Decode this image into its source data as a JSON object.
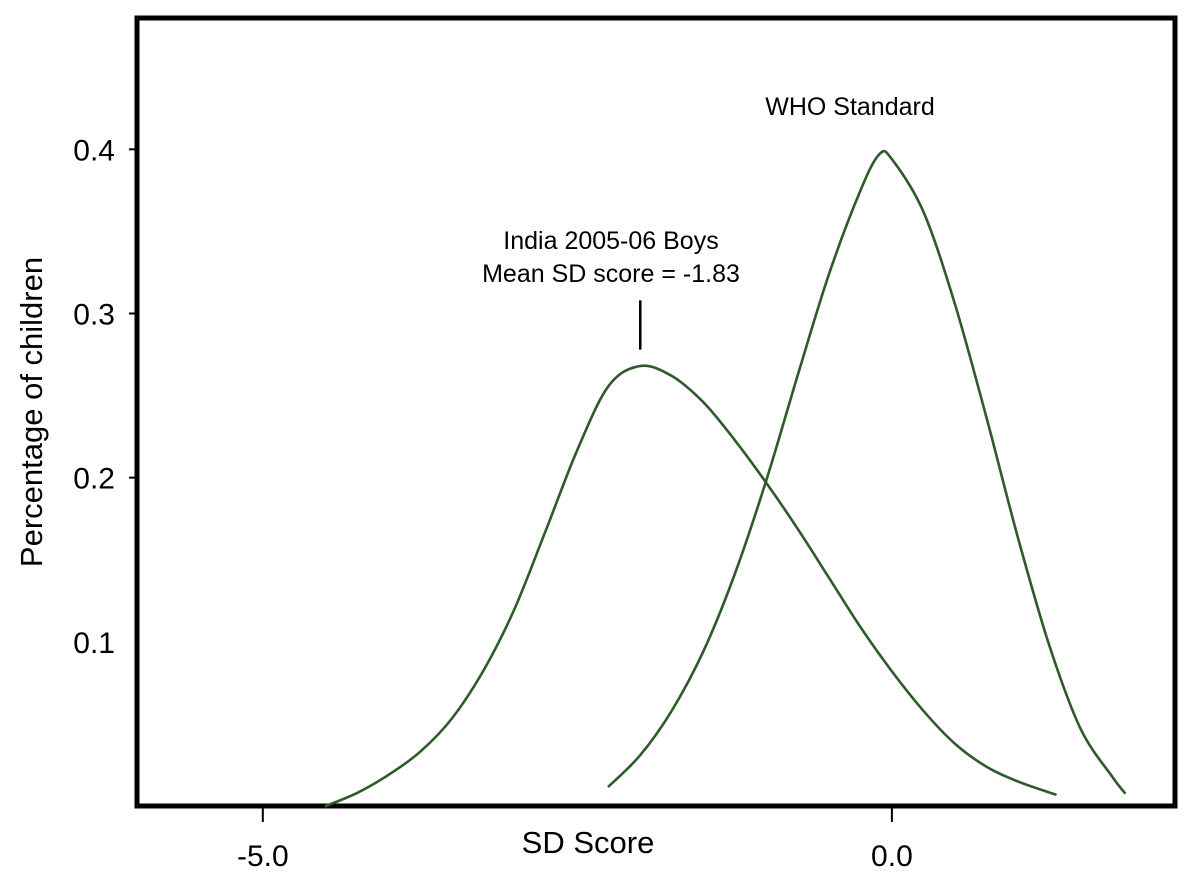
{
  "chart_data": {
    "type": "line",
    "xlabel": "SD Score",
    "ylabel": "Percentage of children",
    "xlim": [
      -6.0,
      2.25
    ],
    "ylim": [
      0.0,
      0.48
    ],
    "x_ticks": [
      {
        "value": -5.0,
        "label": "-5.0"
      },
      {
        "value": 0.0,
        "label": "0.0"
      }
    ],
    "y_ticks": [
      {
        "value": 0.4,
        "label": "0.4",
        "mark": true
      },
      {
        "value": 0.3,
        "label": "0.3",
        "mark": true
      },
      {
        "value": 0.2,
        "label": "0.2",
        "mark": true
      },
      {
        "value": 0.1,
        "label": "0.1",
        "mark": false
      }
    ],
    "grid": false,
    "colors": {
      "curve": "#2f5a2a",
      "axis": "#000000"
    },
    "series": [
      {
        "name": "WHO Standard",
        "x": [
          -2.25,
          -2.0,
          -1.75,
          -1.5,
          -1.25,
          -1.0,
          -0.75,
          -0.5,
          -0.25,
          -0.1,
          0.0,
          0.25,
          0.5,
          0.75,
          1.0,
          1.25,
          1.5,
          1.75,
          1.85
        ],
        "y": [
          0.012,
          0.031,
          0.058,
          0.094,
          0.141,
          0.198,
          0.262,
          0.324,
          0.375,
          0.397,
          0.394,
          0.362,
          0.306,
          0.237,
          0.164,
          0.098,
          0.047,
          0.018,
          0.008
        ]
      },
      {
        "name": "India 2005-06 Boys",
        "x": [
          -4.5,
          -4.25,
          -4.0,
          -3.75,
          -3.5,
          -3.25,
          -3.0,
          -2.75,
          -2.5,
          -2.25,
          -2.0,
          -1.75,
          -1.5,
          -1.25,
          -1.0,
          -0.75,
          -0.5,
          -0.25,
          0.0,
          0.25,
          0.5,
          0.75,
          1.0,
          1.3
        ],
        "y": [
          0.0,
          0.008,
          0.019,
          0.033,
          0.053,
          0.082,
          0.12,
          0.168,
          0.217,
          0.256,
          0.268,
          0.262,
          0.246,
          0.223,
          0.197,
          0.169,
          0.139,
          0.109,
          0.082,
          0.058,
          0.038,
          0.024,
          0.015,
          0.007
        ]
      }
    ],
    "annotations": [
      {
        "text": "WHO Standard"
      },
      {
        "lines": [
          "India 2005-06 Boys",
          "Mean SD score = -1.83"
        ]
      }
    ],
    "mean_marker": {
      "x": -2.0,
      "y_from": 0.278,
      "y_to": 0.308
    }
  }
}
